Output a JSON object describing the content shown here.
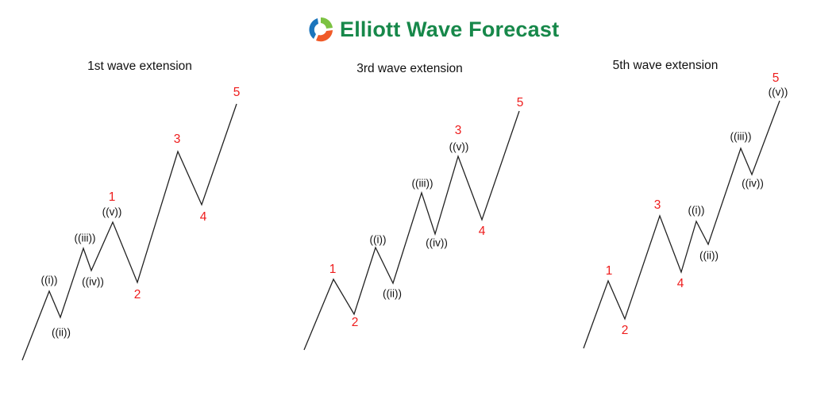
{
  "logo": {
    "text": "Elliott Wave Forecast",
    "icon": "swirl-logo-icon",
    "text_color": "#17884a"
  },
  "panels": [
    {
      "title": "1st wave extension",
      "labels": {
        "w1": "1",
        "w2": "2",
        "w3": "3",
        "w4": "4",
        "w5": "5",
        "si": "((i))",
        "sii": "((ii))",
        "siii": "((iii))",
        "siv": "((iv))",
        "sv": "((v))"
      }
    },
    {
      "title": "3rd wave extension",
      "labels": {
        "w1": "1",
        "w2": "2",
        "w3": "3",
        "w4": "4",
        "w5": "5",
        "si": "((i))",
        "sii": "((ii))",
        "siii": "((iii))",
        "siv": "((iv))",
        "sv": "((v))"
      }
    },
    {
      "title": "5th wave extension",
      "labels": {
        "w1": "1",
        "w2": "2",
        "w3": "3",
        "w4": "4",
        "w5": "5",
        "si": "((i))",
        "sii": "((ii))",
        "siii": "((iii))",
        "siv": "((iv))",
        "sv": "((v))"
      }
    }
  ],
  "colors": {
    "major_wave_label": "#ee1c1c",
    "minor_wave_label": "#111111",
    "line": "#222222"
  }
}
